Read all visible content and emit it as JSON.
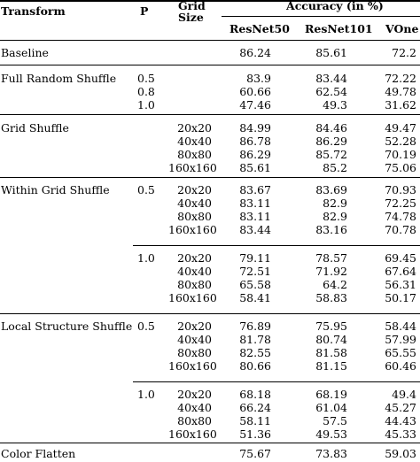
{
  "header": {
    "transform": "Transform",
    "p": "P",
    "grid_size_line1": "Grid",
    "grid_size_line2": "Size",
    "accuracy": "Accuracy (in %)",
    "models": [
      "ResNet50",
      "ResNet101",
      "VOne"
    ]
  },
  "rows": [
    {
      "transform": "Baseline",
      "p": "",
      "grid": "",
      "r50": "86.24",
      "r101": "85.61",
      "vone": "72.2"
    },
    {
      "transform": "Full Random Shuffle",
      "p": "0.5",
      "grid": "",
      "r50": "83.9",
      "r101": "83.44",
      "vone": "72.22"
    },
    {
      "transform": "",
      "p": "0.8",
      "grid": "",
      "r50": "60.66",
      "r101": "62.54",
      "vone": "49.78"
    },
    {
      "transform": "",
      "p": "1.0",
      "grid": "",
      "r50": "47.46",
      "r101": "49.3",
      "vone": "31.62"
    },
    {
      "transform": "Grid Shuffle",
      "p": "",
      "grid": "20x20",
      "r50": "84.99",
      "r101": "84.46",
      "vone": "49.47"
    },
    {
      "transform": "",
      "p": "",
      "grid": "40x40",
      "r50": "86.78",
      "r101": "86.29",
      "vone": "52.28"
    },
    {
      "transform": "",
      "p": "",
      "grid": "80x80",
      "r50": "86.29",
      "r101": "85.72",
      "vone": "70.19"
    },
    {
      "transform": "",
      "p": "",
      "grid": "160x160",
      "r50": "85.61",
      "r101": "85.2",
      "vone": "75.06"
    },
    {
      "transform": "Within Grid Shuffle",
      "p": "0.5",
      "grid": "20x20",
      "r50": "83.67",
      "r101": "83.69",
      "vone": "70.93"
    },
    {
      "transform": "",
      "p": "",
      "grid": "40x40",
      "r50": "83.11",
      "r101": "82.9",
      "vone": "72.25"
    },
    {
      "transform": "",
      "p": "",
      "grid": "80x80",
      "r50": "83.11",
      "r101": "82.9",
      "vone": "74.78"
    },
    {
      "transform": "",
      "p": "",
      "grid": "160x160",
      "r50": "83.44",
      "r101": "83.16",
      "vone": "70.78"
    },
    {
      "transform": "",
      "p": "1.0",
      "grid": "20x20",
      "r50": "79.11",
      "r101": "78.57",
      "vone": "69.45"
    },
    {
      "transform": "",
      "p": "",
      "grid": "40x40",
      "r50": "72.51",
      "r101": "71.92",
      "vone": "67.64"
    },
    {
      "transform": "",
      "p": "",
      "grid": "80x80",
      "r50": "65.58",
      "r101": "64.2",
      "vone": "56.31"
    },
    {
      "transform": "",
      "p": "",
      "grid": "160x160",
      "r50": "58.41",
      "r101": "58.83",
      "vone": "50.17"
    },
    {
      "transform": "Local Structure Shuffle",
      "p": "0.5",
      "grid": "20x20",
      "r50": "76.89",
      "r101": "75.95",
      "vone": "58.44"
    },
    {
      "transform": "",
      "p": "",
      "grid": "40x40",
      "r50": "81.78",
      "r101": "80.74",
      "vone": "57.99"
    },
    {
      "transform": "",
      "p": "",
      "grid": "80x80",
      "r50": "82.55",
      "r101": "81.58",
      "vone": "65.55"
    },
    {
      "transform": "",
      "p": "",
      "grid": "160x160",
      "r50": "80.66",
      "r101": "81.15",
      "vone": "60.46"
    },
    {
      "transform": "",
      "p": "1.0",
      "grid": "20x20",
      "r50": "68.18",
      "r101": "68.19",
      "vone": "49.4"
    },
    {
      "transform": "",
      "p": "",
      "grid": "40x40",
      "r50": "66.24",
      "r101": "61.04",
      "vone": "45.27"
    },
    {
      "transform": "",
      "p": "",
      "grid": "80x80",
      "r50": "58.11",
      "r101": "57.5",
      "vone": "44.43"
    },
    {
      "transform": "",
      "p": "",
      "grid": "160x160",
      "r50": "51.36",
      "r101": "49.53",
      "vone": "45.33"
    },
    {
      "transform": "Color Flatten",
      "p": "",
      "grid": "",
      "r50": "75.67",
      "r101": "73.83",
      "vone": "59.03"
    }
  ]
}
